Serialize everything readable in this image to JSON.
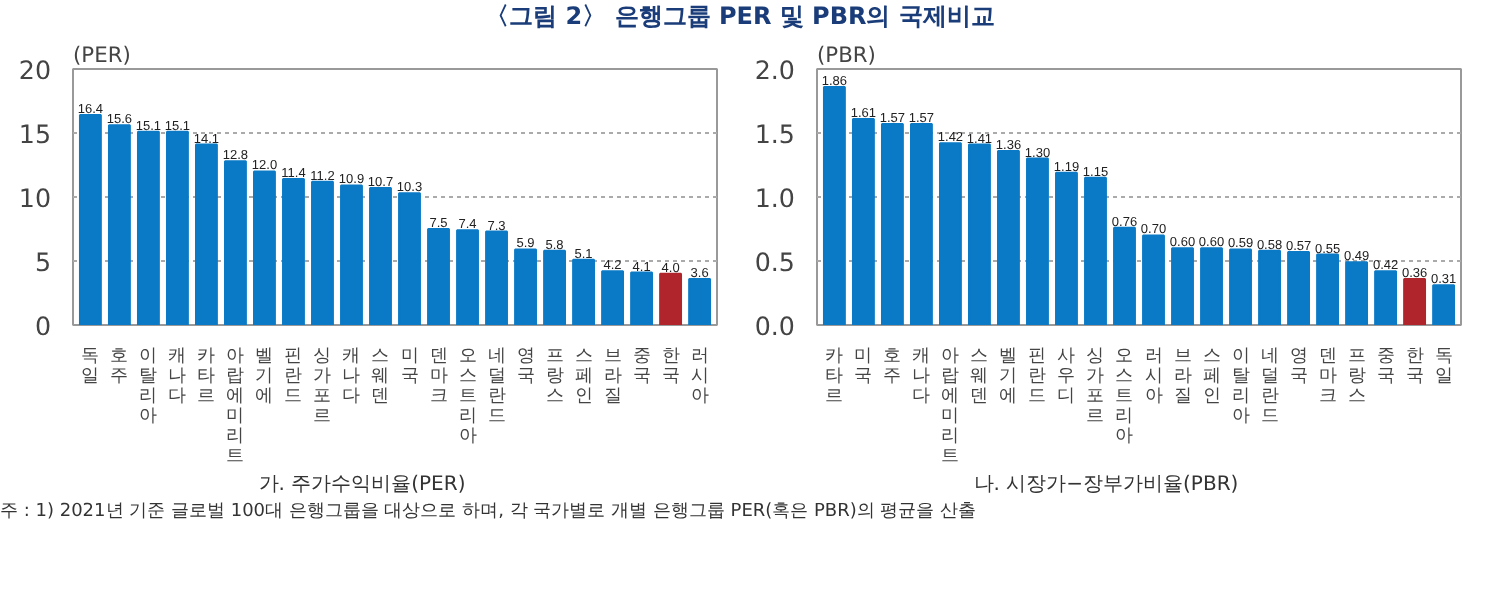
{
  "chart_data": [
    {
      "type": "bar",
      "title": "〈그림 2〉 은행그룹 PER 및 PBR의 국제비교",
      "ylabel": "(PER)",
      "xlabel": "가. 주가수익비율(PER)",
      "categories": [
        "독일",
        "호주",
        "이탈리아",
        "캐나다",
        "카타르",
        "아랍에미리트",
        "벨기에",
        "핀란드",
        "싱가포르",
        "캐나다",
        "스웨덴",
        "미국",
        "덴마크",
        "오스트리아",
        "네덜란드",
        "영국",
        "프랑스",
        "스페인",
        "브라질",
        "중국",
        "한국",
        "러시아"
      ],
      "values": [
        16.4,
        15.6,
        15.1,
        15.1,
        14.1,
        12.8,
        12.0,
        11.4,
        11.2,
        10.9,
        10.7,
        10.3,
        7.5,
        7.4,
        7.3,
        5.9,
        5.8,
        5.1,
        4.2,
        4.1,
        4.0,
        3.6
      ],
      "colors": [
        "#0a7ac6",
        "#0a7ac6",
        "#0a7ac6",
        "#0a7ac6",
        "#0a7ac6",
        "#0a7ac6",
        "#0a7ac6",
        "#0a7ac6",
        "#0a7ac6",
        "#0a7ac6",
        "#0a7ac6",
        "#0a7ac6",
        "#0a7ac6",
        "#0a7ac6",
        "#0a7ac6",
        "#0a7ac6",
        "#0a7ac6",
        "#0a7ac6",
        "#0a7ac6",
        "#0a7ac6",
        "#b0252b",
        "#0a7ac6"
      ],
      "value_labels": [
        "16.4",
        "15.6",
        "15.1",
        "15.1",
        "14.1",
        "12.8",
        "12.0",
        "11.4",
        "11.2",
        "10.9",
        "10.7",
        "10.3",
        "7.5",
        "7.4",
        "7.3",
        "5.9",
        "5.8",
        "5.1",
        "4.2",
        "4.1",
        "4.0",
        "3.6"
      ],
      "ylim": [
        0,
        20
      ],
      "yticks": [
        0,
        5,
        10,
        15,
        20
      ],
      "grid": "y",
      "annotations": [
        "주 : 1) 2021년 기준 글로벌 100대 은행그룹을 대상으로 하며, 각 국가별로 개별 은행그룹 PER(혹은 PBR)의 평균을 산출"
      ]
    },
    {
      "type": "bar",
      "ylabel": "(PBR)",
      "xlabel": "나. 시장가−장부가비율(PBR)",
      "categories": [
        "카타르",
        "미국",
        "호주",
        "캐나다",
        "아랍에미리트",
        "스웨덴",
        "벨기에",
        "핀란드",
        "사우디",
        "싱가포르",
        "오스트리아",
        "러시아",
        "브라질",
        "스페인",
        "이탈리아",
        "네덜란드",
        "영국",
        "덴마크",
        "프랑스",
        "중국",
        "한국",
        "독일"
      ],
      "values": [
        1.86,
        1.61,
        1.57,
        1.57,
        1.42,
        1.41,
        1.36,
        1.3,
        1.19,
        1.15,
        0.76,
        0.7,
        0.6,
        0.6,
        0.59,
        0.58,
        0.57,
        0.55,
        0.49,
        0.42,
        0.36,
        0.31
      ],
      "colors": [
        "#0a7ac6",
        "#0a7ac6",
        "#0a7ac6",
        "#0a7ac6",
        "#0a7ac6",
        "#0a7ac6",
        "#0a7ac6",
        "#0a7ac6",
        "#0a7ac6",
        "#0a7ac6",
        "#0a7ac6",
        "#0a7ac6",
        "#0a7ac6",
        "#0a7ac6",
        "#0a7ac6",
        "#0a7ac6",
        "#0a7ac6",
        "#0a7ac6",
        "#0a7ac6",
        "#0a7ac6",
        "#b0252b",
        "#0a7ac6"
      ],
      "value_labels": [
        "1.86",
        "1.61",
        "1.57",
        "1.57",
        "1.42",
        "1.41",
        "1.36",
        "1.30",
        "1.19",
        "1.15",
        "0.76",
        "0.70",
        "0.60",
        "0.60",
        "0.59",
        "0.58",
        "0.57",
        "0.55",
        "0.49",
        "0.42",
        "0.36",
        "0.31"
      ],
      "ylim": [
        0,
        2.0
      ],
      "yticks": [
        {
          "value": 0,
          "label": "0.0"
        },
        {
          "value": 0.5,
          "label": "0.5"
        },
        {
          "value": 1.0,
          "label": "1.0"
        },
        {
          "value": 1.5,
          "label": "1.5"
        },
        {
          "value": 2.0,
          "label": "2.0"
        }
      ],
      "grid": "y"
    }
  ]
}
